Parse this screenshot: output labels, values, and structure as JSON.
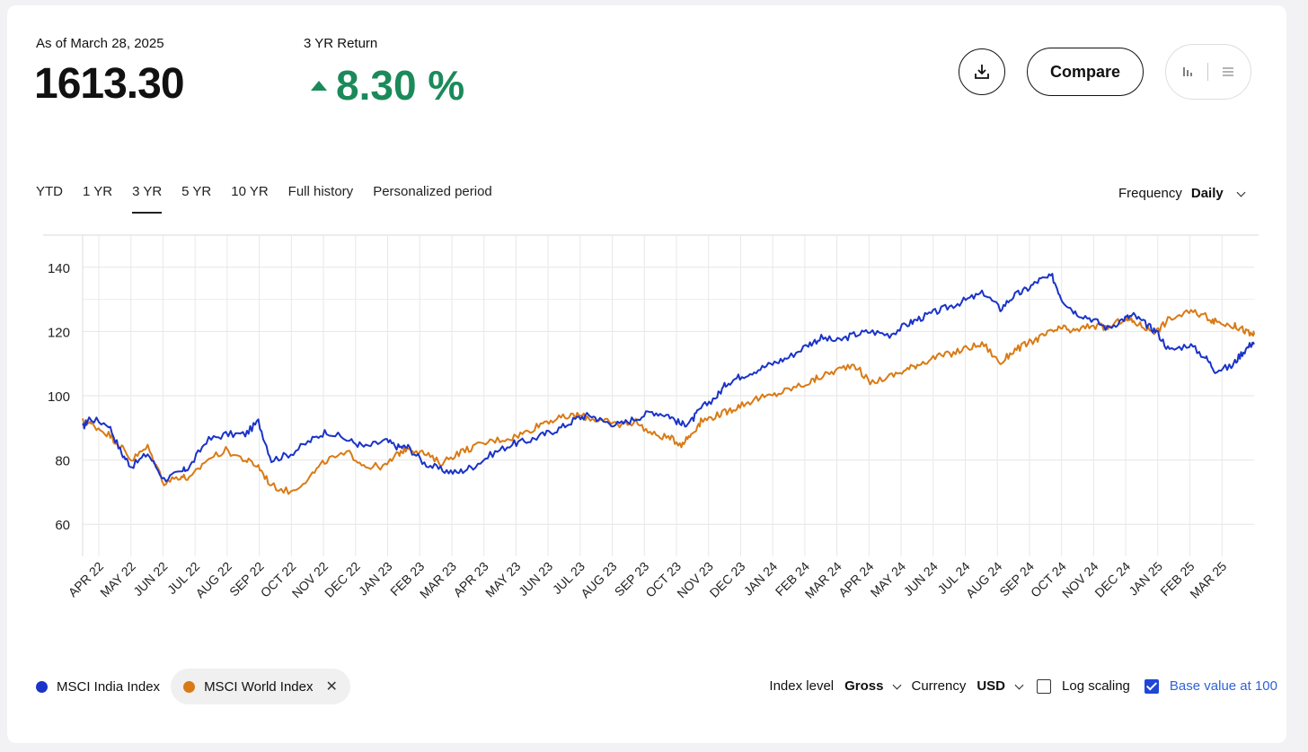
{
  "header": {
    "as_of": "As of March 28, 2025",
    "value": "1613.30",
    "return_label": "3 YR Return",
    "return_value": "8.30 %",
    "compare_label": "Compare",
    "download_icon": "download-icon",
    "view_icons": [
      "bar-chart-icon",
      "list-icon"
    ]
  },
  "tabs": [
    "YTD",
    "1 YR",
    "3 YR",
    "5 YR",
    "10 YR",
    "Full history",
    "Personalized period"
  ],
  "active_tab": "3 YR",
  "frequency": {
    "label": "Frequency",
    "value": "Daily"
  },
  "legend": {
    "series1": "MSCI India Index",
    "series2": "MSCI World Index"
  },
  "controls": {
    "index_level_label": "Index level",
    "index_level_value": "Gross",
    "currency_label": "Currency",
    "currency_value": "USD",
    "log_scaling_label": "Log scaling",
    "log_scaling": false,
    "base_value_label": "Base value at 100",
    "base_value": true
  },
  "colors": {
    "india": "#1a33c8",
    "world": "#d97a14",
    "positive": "#1b8a5a"
  },
  "chart_data": {
    "type": "line",
    "ylim": [
      50,
      150
    ],
    "yticks": [
      60,
      80,
      100,
      120,
      140
    ],
    "grid": true,
    "x": [
      "APR 22",
      "MAY 22",
      "JUN 22",
      "JUL 22",
      "AUG 22",
      "SEP 22",
      "OCT 22",
      "NOV 22",
      "DEC 22",
      "JAN 23",
      "FEB 23",
      "MAR 23",
      "APR 23",
      "MAY 23",
      "JUN 23",
      "JUL 23",
      "AUG 23",
      "SEP 23",
      "OCT 23",
      "NOV 23",
      "DEC 23",
      "JAN 24",
      "FEB 24",
      "MAR 24",
      "APR 24",
      "MAY 24",
      "JUN 24",
      "JUL 24",
      "AUG 24",
      "SEP 24",
      "OCT 24",
      "NOV 24",
      "DEC 24",
      "JAN 25",
      "FEB 25",
      "MAR 25"
    ],
    "series": [
      {
        "name": "MSCI India Index",
        "values": [
          [
            0,
            90
          ],
          [
            0.2,
            93
          ],
          [
            0.8,
            91
          ],
          [
            1.2,
            82
          ],
          [
            1.5,
            78
          ],
          [
            2.0,
            82
          ],
          [
            2.5,
            74
          ],
          [
            3.0,
            76
          ],
          [
            3.3,
            78
          ],
          [
            3.8,
            86
          ],
          [
            4.4,
            88
          ],
          [
            5.0,
            88
          ],
          [
            5.4,
            92
          ],
          [
            5.8,
            80
          ],
          [
            6.4,
            82
          ],
          [
            7.0,
            86
          ],
          [
            7.5,
            89
          ],
          [
            8.2,
            86
          ],
          [
            8.7,
            84
          ],
          [
            9.3,
            86
          ],
          [
            9.7,
            84
          ],
          [
            10.0,
            84
          ],
          [
            10.5,
            79
          ],
          [
            11.0,
            77
          ],
          [
            11.5,
            76
          ],
          [
            12.0,
            78
          ],
          [
            12.6,
            82
          ],
          [
            13.2,
            85
          ],
          [
            13.7,
            86
          ],
          [
            14.2,
            88
          ],
          [
            14.7,
            90
          ],
          [
            15.2,
            93
          ],
          [
            15.6,
            94
          ],
          [
            16.0,
            92
          ],
          [
            16.5,
            91
          ],
          [
            17.0,
            93
          ],
          [
            17.5,
            95
          ],
          [
            18.0,
            94
          ],
          [
            18.4,
            91
          ],
          [
            18.7,
            92
          ],
          [
            19.0,
            96
          ],
          [
            19.5,
            100
          ],
          [
            19.8,
            104
          ],
          [
            20.2,
            106
          ],
          [
            20.7,
            108
          ],
          [
            21.2,
            110
          ],
          [
            21.7,
            112
          ],
          [
            22.3,
            116
          ],
          [
            22.7,
            118
          ],
          [
            23.2,
            117
          ],
          [
            23.7,
            119
          ],
          [
            24.2,
            120
          ],
          [
            24.8,
            119
          ],
          [
            25.3,
            122
          ],
          [
            25.7,
            124
          ],
          [
            26.2,
            126
          ],
          [
            26.7,
            128
          ],
          [
            27.2,
            130
          ],
          [
            27.7,
            132
          ],
          [
            28.2,
            127
          ],
          [
            28.6,
            131
          ],
          [
            29.0,
            133
          ],
          [
            29.4,
            136
          ],
          [
            29.8,
            137
          ],
          [
            30.1,
            130
          ],
          [
            30.5,
            126
          ],
          [
            31.0,
            124
          ],
          [
            31.5,
            121
          ],
          [
            32.0,
            124
          ],
          [
            32.3,
            125
          ],
          [
            32.7,
            122
          ],
          [
            33.0,
            120
          ],
          [
            33.4,
            114
          ],
          [
            34.0,
            116
          ],
          [
            34.5,
            112
          ],
          [
            34.8,
            108
          ],
          [
            35.3,
            109
          ],
          [
            35.6,
            113
          ],
          [
            35.9,
            116
          ],
          [
            36.0,
            116
          ]
        ]
      },
      {
        "name": "MSCI World Index",
        "values": [
          [
            0,
            92
          ],
          [
            0.3,
            91
          ],
          [
            0.8,
            88
          ],
          [
            1.2,
            84
          ],
          [
            1.5,
            80
          ],
          [
            2.0,
            84
          ],
          [
            2.5,
            73
          ],
          [
            3.0,
            75
          ],
          [
            3.3,
            74
          ],
          [
            3.8,
            80
          ],
          [
            4.4,
            83
          ],
          [
            5.0,
            80
          ],
          [
            5.4,
            78
          ],
          [
            5.8,
            72
          ],
          [
            6.4,
            70
          ],
          [
            7.0,
            75
          ],
          [
            7.5,
            80
          ],
          [
            8.2,
            82
          ],
          [
            8.7,
            78
          ],
          [
            9.3,
            78
          ],
          [
            9.7,
            82
          ],
          [
            10.0,
            84
          ],
          [
            10.5,
            82
          ],
          [
            11.0,
            79
          ],
          [
            11.5,
            82
          ],
          [
            12.0,
            84
          ],
          [
            12.6,
            86
          ],
          [
            13.2,
            87
          ],
          [
            13.7,
            89
          ],
          [
            14.2,
            92
          ],
          [
            14.7,
            93
          ],
          [
            15.2,
            94
          ],
          [
            15.6,
            93
          ],
          [
            16.0,
            92
          ],
          [
            16.5,
            91
          ],
          [
            17.0,
            92
          ],
          [
            17.5,
            88
          ],
          [
            18.0,
            87
          ],
          [
            18.4,
            85
          ],
          [
            18.7,
            88
          ],
          [
            19.0,
            92
          ],
          [
            19.5,
            94
          ],
          [
            19.8,
            95
          ],
          [
            20.2,
            97
          ],
          [
            20.7,
            99
          ],
          [
            21.2,
            100
          ],
          [
            21.7,
            102
          ],
          [
            22.3,
            104
          ],
          [
            22.7,
            106
          ],
          [
            23.2,
            108
          ],
          [
            23.7,
            110
          ],
          [
            24.2,
            104
          ],
          [
            24.8,
            106
          ],
          [
            25.3,
            108
          ],
          [
            25.7,
            110
          ],
          [
            26.2,
            112
          ],
          [
            26.7,
            113
          ],
          [
            27.2,
            115
          ],
          [
            27.7,
            116
          ],
          [
            28.2,
            110
          ],
          [
            28.6,
            114
          ],
          [
            29.0,
            116
          ],
          [
            29.4,
            118
          ],
          [
            29.8,
            120
          ],
          [
            30.1,
            121
          ],
          [
            30.5,
            120
          ],
          [
            31.0,
            122
          ],
          [
            31.5,
            121
          ],
          [
            32.0,
            124
          ],
          [
            32.3,
            123
          ],
          [
            32.7,
            121
          ],
          [
            33.0,
            120
          ],
          [
            33.4,
            124
          ],
          [
            34.0,
            126
          ],
          [
            34.5,
            125
          ],
          [
            34.8,
            123
          ],
          [
            35.3,
            122
          ],
          [
            35.6,
            121
          ],
          [
            35.9,
            119
          ],
          [
            36.0,
            119
          ]
        ]
      }
    ]
  }
}
